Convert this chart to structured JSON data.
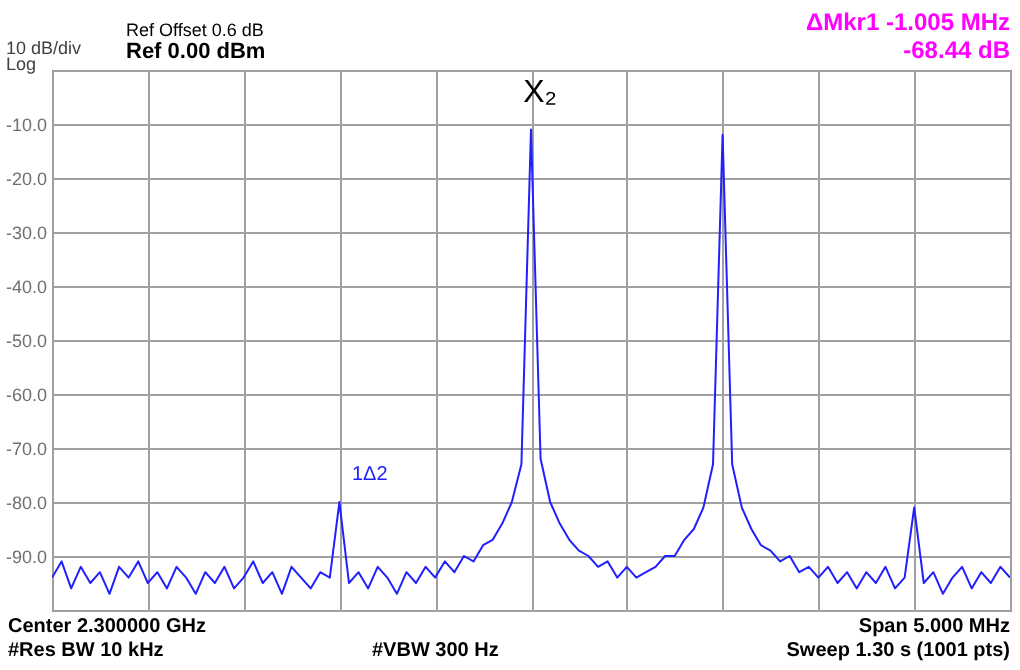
{
  "chart_data": {
    "type": "line",
    "annotations": [
      "Ref Offset 0.6 dB",
      "Ref 0.00 dBm",
      "10 dB/div",
      "Log",
      "ΔMkr1 -1.005 MHz",
      "-68.44 dB",
      "Center 2.300000 GHz",
      "#Res BW 10 kHz",
      "#VBW 300 Hz",
      "Span 5.000 MHz",
      "Sweep  1.30 s (1001 pts)",
      "X₂",
      "1Δ2"
    ],
    "categories": [
      null,
      null,
      null,
      null,
      null,
      null,
      null,
      null,
      null,
      null,
      null,
      null,
      null,
      null,
      null,
      null,
      null,
      null,
      null,
      null,
      null,
      null,
      null,
      null,
      null,
      null,
      null,
      null,
      null,
      null,
      null,
      null,
      null,
      null,
      null,
      null,
      null,
      null,
      null,
      null,
      null,
      null,
      null,
      null,
      null,
      null,
      null,
      null,
      null,
      null,
      null,
      null,
      null,
      null,
      null,
      null,
      null,
      null,
      null,
      null,
      null,
      null,
      null,
      null,
      null,
      null,
      null,
      null,
      null,
      null,
      null,
      null,
      null,
      null,
      null,
      null,
      null,
      null,
      null,
      null,
      null,
      null,
      null,
      null,
      null,
      null,
      null,
      null,
      null,
      null,
      null,
      null,
      null,
      null,
      null,
      null,
      null,
      null,
      null,
      null,
      null
    ],
    "series": [
      {
        "color": "#2020ff",
        "values": [
          -94,
          -91,
          -96,
          -92,
          -95,
          -93,
          -97,
          -92,
          -94,
          -91,
          -95,
          -93,
          -96,
          -92,
          -94,
          -97,
          -93,
          -95,
          -92,
          -96,
          -94,
          -91,
          -95,
          -93,
          -97,
          -92,
          -94,
          -96,
          -93,
          -94,
          -80,
          -95,
          -93,
          -96,
          -92,
          -94,
          -97,
          -93,
          -95,
          -92,
          -94,
          -91,
          -93,
          -90,
          -91,
          -88,
          -87,
          -84,
          -80,
          -73,
          -11,
          -72,
          -80,
          -84,
          -87,
          -89,
          -90,
          -92,
          -91,
          -94,
          -92,
          -94,
          -93,
          -92,
          -90,
          -90,
          -87,
          -85,
          -81,
          -73,
          -12,
          -73,
          -81,
          -85,
          -88,
          -89,
          -91,
          -90,
          -93,
          -92,
          -94,
          -92,
          -95,
          -93,
          -96,
          -93,
          -95,
          -92,
          -96,
          -94,
          -81,
          -95,
          -93,
          -97,
          -94,
          -92,
          -96,
          -93,
          -95,
          -92,
          -94
        ]
      }
    ],
    "ylim": [
      -100,
      0
    ],
    "yticks": [
      {
        "value": 0,
        "label": null
      },
      {
        "value": -10,
        "label": "-10.0"
      },
      {
        "value": -20,
        "label": "-20.0"
      },
      {
        "value": -30,
        "label": "-30.0"
      },
      {
        "value": -40,
        "label": "-40.0"
      },
      {
        "value": -50,
        "label": "-50.0"
      },
      {
        "value": -60,
        "label": "-60.0"
      },
      {
        "value": -70,
        "label": "-70.0"
      },
      {
        "value": -80,
        "label": "-80.0"
      },
      {
        "value": -90,
        "label": "-90.0"
      },
      {
        "value": -100,
        "label": null
      }
    ],
    "grid": true,
    "tick_labels": "y",
    "line_style": "solid"
  }
}
